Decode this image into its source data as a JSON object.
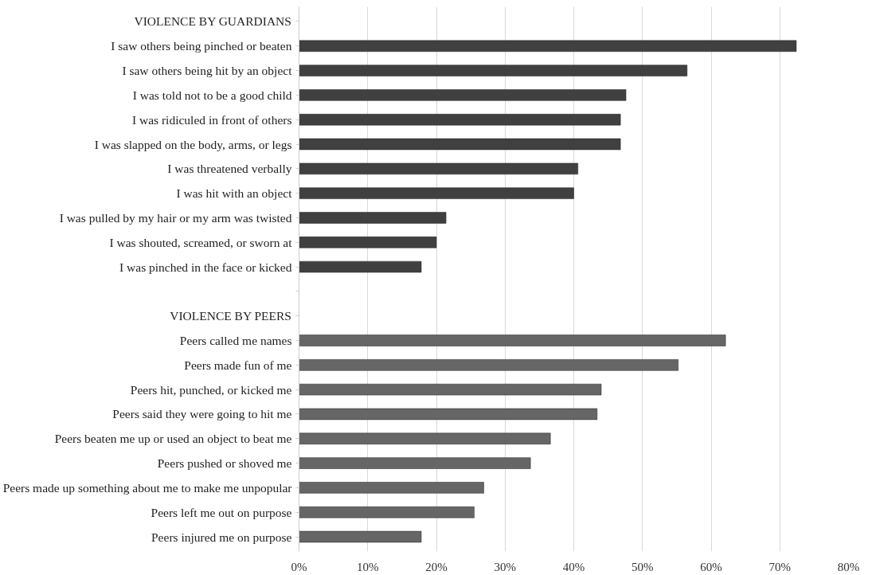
{
  "chart_data": {
    "type": "bar",
    "orientation": "horizontal",
    "categories": [
      "VIOLENCE BY GUARDIANS",
      "I saw others being pinched or beaten",
      "I saw others being hit by an object",
      "I was told not to be a good child",
      "I was ridiculed in front of others",
      "I was slapped on the body, arms, or legs",
      "I was threatened verbally",
      "I was hit with an object",
      "I was pulled by my hair or my arm was twisted",
      "I was shouted, screamed, or sworn at",
      "I was pinched in the face or kicked",
      null,
      "VIOLENCE BY PEERS",
      "Peers called me names",
      "Peers made fun of me",
      "Peers hit, punched, or kicked me",
      "Peers said they were going to hit me",
      "Peers beaten me up or used an object to beat me",
      "Peers pushed or shoved me",
      "Peers made up something about me to make me unpopular",
      "Peers left me out on purpose",
      "Peers injured me on purpose"
    ],
    "values": [
      null,
      72.4,
      56.5,
      47.6,
      46.8,
      46.8,
      40.6,
      40.0,
      21.4,
      20.0,
      17.8,
      null,
      null,
      62.1,
      55.2,
      44.0,
      43.4,
      36.6,
      33.7,
      26.9,
      25.5,
      17.8
    ],
    "colors": [
      null,
      "#404040",
      "#404040",
      "#404040",
      "#404040",
      "#404040",
      "#404040",
      "#404040",
      "#404040",
      "#404040",
      "#404040",
      null,
      null,
      "#666666",
      "#666666",
      "#666666",
      "#666666",
      "#666666",
      "#666666",
      "#666666",
      "#666666",
      "#666666"
    ],
    "xlim": [
      0,
      80
    ],
    "xticks": [
      {
        "value": 0,
        "label": "0%"
      },
      {
        "value": 10,
        "label": "10%"
      },
      {
        "value": 20,
        "label": "20%"
      },
      {
        "value": 30,
        "label": "30%"
      },
      {
        "value": 40,
        "label": "40%"
      },
      {
        "value": 50,
        "label": "50%"
      },
      {
        "value": 60,
        "label": "60%"
      },
      {
        "value": 70,
        "label": "70%"
      },
      {
        "value": 80,
        "label": "80%"
      }
    ],
    "grid": "x"
  }
}
